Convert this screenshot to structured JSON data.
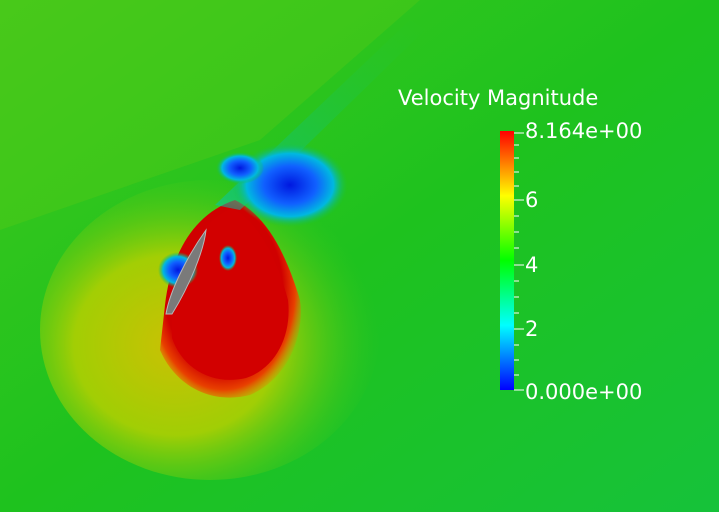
{
  "legend": {
    "title": "Velocity Magnitude",
    "max_label": "8.164e+00",
    "min_label": "0.000e+00",
    "tick_labels": [
      "6",
      "4",
      "2"
    ],
    "range": [
      0,
      8.164
    ],
    "colormap": [
      "#0000ff",
      "#00ffff",
      "#00ff00",
      "#ffff00",
      "#ff0000"
    ]
  },
  "colors": {
    "background_field": "#1ec21e",
    "high_velocity": "#d20000",
    "low_velocity": "#1020e0",
    "airfoil": "#7a7a7a"
  }
}
